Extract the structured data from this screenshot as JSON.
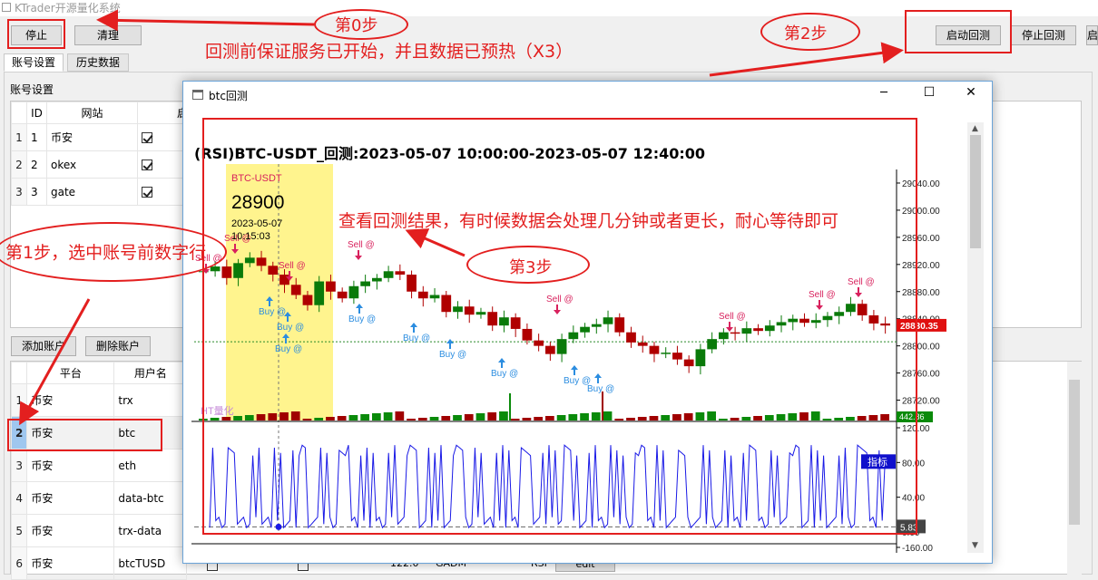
{
  "app": {
    "title": "KTrader开源量化系统"
  },
  "toolbar": {
    "stop_label": "停止",
    "clear_label": "清理",
    "start_backtest_label": "启动回测",
    "stop_backtest_label": "停止回测",
    "extra_label": "启"
  },
  "tabs": [
    {
      "label": "账号设置",
      "active": true
    },
    {
      "label": "历史数据",
      "active": false
    }
  ],
  "account_section": {
    "title": "账号设置",
    "headers": [
      "ID",
      "网站",
      "启"
    ],
    "rows": [
      {
        "row": "1",
        "id": "1",
        "site": "币安",
        "enabled": true
      },
      {
        "row": "2",
        "id": "2",
        "site": "okex",
        "enabled": true
      },
      {
        "row": "3",
        "id": "3",
        "site": "gate",
        "enabled": true
      }
    ]
  },
  "account_buttons": {
    "add": "添加账户",
    "delete": "删除账户"
  },
  "user_table": {
    "headers": [
      "平台",
      "用户名"
    ],
    "rows": [
      {
        "row": "1",
        "platform": "币安",
        "user": "trx",
        "selected": false
      },
      {
        "row": "2",
        "platform": "币安",
        "user": "btc",
        "selected": true
      },
      {
        "row": "3",
        "platform": "币安",
        "user": "eth",
        "selected": false
      },
      {
        "row": "4",
        "platform": "币安",
        "user": "data-btc",
        "selected": false
      },
      {
        "row": "5",
        "platform": "币安",
        "user": "trx-data",
        "selected": false
      },
      {
        "row": "6",
        "platform": "币安",
        "user": "btcTUSD",
        "selected": false
      }
    ],
    "peek": {
      "price": "122.0",
      "user": "GADM",
      "strategy": "RSI",
      "edit": "edit"
    }
  },
  "backtest_window": {
    "title": "btc回测",
    "minimize": "─",
    "maximize": "☐",
    "close": "✕"
  },
  "chart_data": {
    "type": "line",
    "title": "(RSI)BTC-USDT_回测:2023-05-07 10:00:00-2023-05-07 12:40:00",
    "main_axis_ticks": [
      "29040.00",
      "29000.00",
      "28960.00",
      "28920.00",
      "28880.00",
      "28840.00",
      "28800.00",
      "28760.00",
      "28720.00"
    ],
    "ylim": [
      28690,
      29060
    ],
    "last_price": "28830.35",
    "volume_label": "442.86",
    "indicator_axis_ticks": [
      "120.00",
      "80.00",
      "40.00",
      "0.00",
      "-160.00"
    ],
    "indicator_label": "指标",
    "indicator_value": "5.83",
    "watermark": "HT量化",
    "series": [
      {
        "name": "",
        "values": [
          28910,
          28917,
          28900,
          28922,
          28930,
          28918,
          28905,
          28890,
          28875,
          28860,
          28895,
          28880,
          28870,
          28888,
          28895,
          28900,
          28910,
          28905,
          28880,
          28870,
          28875,
          28850,
          28858,
          28846,
          28850,
          28830,
          28842,
          28825,
          28808,
          28800,
          28788,
          28810,
          28820,
          28828,
          28832,
          28842,
          28820,
          28805,
          28800,
          28788,
          28790,
          28780,
          28770,
          28795,
          28810,
          28820,
          28818,
          28826,
          28822,
          28830,
          28835,
          28840,
          28834,
          28838,
          28844,
          28850,
          28862,
          28845,
          28833,
          28830
        ]
      }
    ],
    "buy_signals": [
      {
        "label": "Buy @"
      },
      {
        "label": "Buy @"
      },
      {
        "label": "Buy @"
      },
      {
        "label": "Buy @"
      },
      {
        "label": "Buy @"
      },
      {
        "label": "Buy @"
      },
      {
        "label": "Buy @"
      },
      {
        "label": "Buy @"
      },
      {
        "label": "Buy @"
      }
    ],
    "sell_signals": [
      {
        "label": "Sell @"
      },
      {
        "label": "Sell @"
      },
      {
        "label": "Sell @"
      },
      {
        "label": "Sell @"
      },
      {
        "label": "Sell @"
      },
      {
        "label": "Sell @"
      },
      {
        "label": "Sell @"
      },
      {
        "label": "Sell @"
      }
    ],
    "tooltip": {
      "symbol": "BTC-USDT",
      "price": "28900",
      "date": "2023-05-07",
      "time": "10:15:03"
    }
  },
  "annotations": {
    "step0": "第0步",
    "step0_text": "回测前保证服务已开始，并且数据已预热（X3）",
    "step1": "第1步，选中账号前数字行",
    "step2": "第2步",
    "step3": "第3步",
    "step3_text": "查看回测结果，有时候数据会处理几分钟或者更长，耐心等待即可"
  },
  "colors": {
    "annotation": "#e31f1f",
    "buy": "#2b8de0",
    "sell": "#d8215d",
    "candle_up": "#0a7a0a",
    "candle_down": "#b00000",
    "indicator": "#1a1ae6"
  }
}
